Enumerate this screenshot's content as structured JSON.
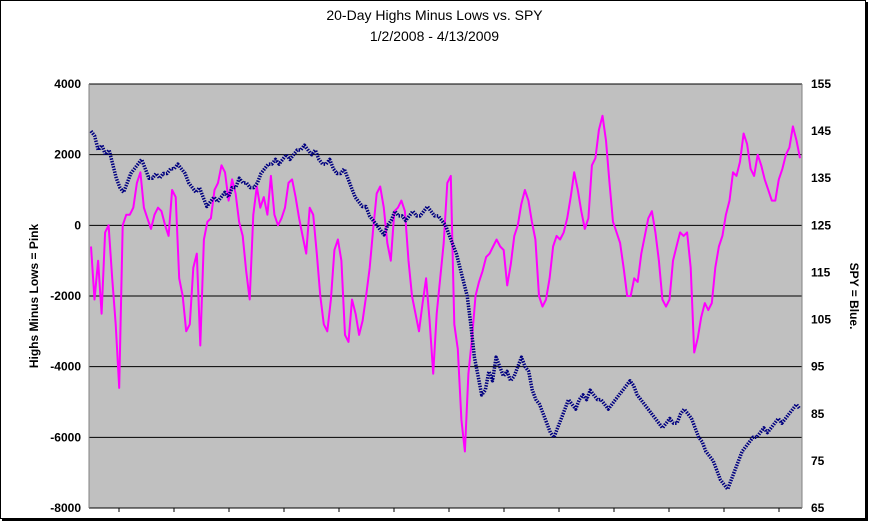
{
  "chart_data": {
    "type": "line",
    "title": "20-Day Highs Minus Lows vs. SPY",
    "subtitle": "1/2/2008 - 4/13/2009",
    "ylabel": "Highs Minus Lows = Pink",
    "y2label": "SPY = Blue.",
    "ylim": [
      -8000,
      4000
    ],
    "y2lim": [
      65,
      155
    ],
    "y_ticks": [
      "4000",
      "2000",
      "0",
      "-2000",
      "-4000",
      "-6000",
      "-8000"
    ],
    "y2_ticks": [
      "155",
      "145",
      "135",
      "125",
      "115",
      "105",
      "95",
      "85",
      "75",
      "65"
    ],
    "grid": true,
    "series": [
      {
        "axis": "left",
        "color": "#ff00ff",
        "values": [
          -600,
          -2100,
          -1000,
          -2500,
          -200,
          0,
          -1500,
          -2800,
          -4600,
          0,
          300,
          300,
          500,
          1200,
          1500,
          500,
          200,
          -100,
          300,
          500,
          400,
          0,
          -300,
          1000,
          800,
          -1500,
          -2000,
          -3000,
          -2800,
          -1200,
          -800,
          -3400,
          -400,
          100,
          200,
          1000,
          1200,
          1700,
          1500,
          700,
          1300,
          900,
          100,
          -300,
          -1300,
          -2100,
          300,
          1100,
          500,
          800,
          300,
          1400,
          300,
          0,
          200,
          500,
          1200,
          1300,
          800,
          200,
          -300,
          -800,
          500,
          300,
          -800,
          -2000,
          -2800,
          -3000,
          -2100,
          -700,
          -400,
          -1000,
          -3100,
          -3300,
          -2100,
          -2500,
          -3100,
          -2700,
          -2000,
          -1200,
          -100,
          900,
          1100,
          500,
          -500,
          -1000,
          400,
          500,
          700,
          400,
          -1000,
          -2000,
          -2500,
          -3000,
          -2200,
          -1500,
          -2700,
          -4200,
          -2500,
          -1500,
          -500,
          1200,
          1400,
          -2800,
          -3500,
          -5500,
          -6400,
          -4200,
          -3200,
          -2000,
          -1600,
          -1300,
          -900,
          -800,
          -600,
          -400,
          -600,
          -700,
          -1700,
          -1100,
          -300,
          0,
          600,
          1000,
          700,
          100,
          -400,
          -2000,
          -2300,
          -2100,
          -1500,
          -600,
          -300,
          -400,
          -200,
          200,
          800,
          1500,
          1000,
          400,
          -100,
          200,
          1700,
          1900,
          2700,
          3100,
          2400,
          1200,
          100,
          -200,
          -500,
          -1200,
          -2000,
          -2000,
          -1500,
          -1600,
          -800,
          -300,
          200,
          400,
          -200,
          -1000,
          -2100,
          -2300,
          -2100,
          -1000,
          -600,
          -200,
          -300,
          -200,
          -1200,
          -3600,
          -3200,
          -2600,
          -2200,
          -2400,
          -2200,
          -1200,
          -600,
          -300,
          300,
          700,
          1500,
          1400,
          1800,
          2600,
          2300,
          1600,
          1400,
          2000,
          1700,
          1300,
          1000,
          700,
          700,
          1300,
          1600,
          2000,
          2200,
          2800,
          2400,
          1900
        ]
      },
      {
        "axis": "right",
        "color": "#000080",
        "values": [
          145,
          144,
          141,
          142,
          140,
          141,
          138,
          135,
          133,
          132,
          134,
          136,
          137,
          138,
          139,
          137,
          135,
          135,
          136,
          135,
          136,
          136,
          137,
          137,
          138,
          137,
          136,
          134,
          133,
          132,
          133,
          131,
          129,
          130,
          131,
          130,
          131,
          132,
          131,
          133,
          133,
          135,
          134,
          134,
          133,
          133,
          134,
          136,
          137,
          138,
          138,
          139,
          138,
          139,
          140,
          139,
          140,
          141,
          141,
          142,
          141,
          140,
          141,
          139,
          138,
          138,
          139,
          137,
          136,
          136,
          137,
          135,
          133,
          131,
          130,
          129,
          129,
          127,
          126,
          125,
          124,
          123,
          125,
          126,
          128,
          127,
          127,
          126,
          127,
          128,
          127,
          127,
          128,
          129,
          128,
          127,
          127,
          126,
          125,
          123,
          121,
          119,
          116,
          113,
          110,
          104,
          97,
          93,
          89,
          90,
          94,
          92,
          97,
          95,
          93,
          94,
          92,
          93,
          95,
          97,
          95,
          94,
          90,
          88,
          87,
          85,
          83,
          81,
          80,
          82,
          84,
          86,
          88,
          87,
          86,
          88,
          89,
          88,
          90,
          89,
          88,
          88,
          87,
          86,
          87,
          88,
          89,
          90,
          91,
          92,
          91,
          89,
          88,
          87,
          86,
          85,
          84,
          83,
          82,
          83,
          84,
          83,
          83,
          85,
          86,
          85,
          84,
          82,
          80,
          79,
          77,
          76,
          75,
          73,
          71,
          70,
          69,
          71,
          73,
          75,
          77,
          78,
          79,
          80,
          80,
          81,
          82,
          81,
          82,
          83,
          84,
          83,
          84,
          85,
          86,
          87,
          86
        ]
      }
    ]
  }
}
